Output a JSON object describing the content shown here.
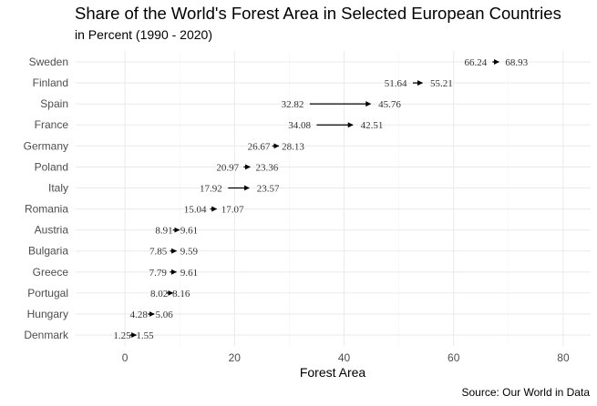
{
  "title": "Share of the World's Forest Area in Selected European Countries",
  "subtitle": "in Percent (1990 - 2020)",
  "source": "Source: Our World in Data",
  "chart_data": {
    "type": "arrow",
    "xlabel": "Forest Area",
    "ylabel": "",
    "xlim": [
      -9,
      85
    ],
    "xticks": [
      0,
      20,
      40,
      60,
      80
    ],
    "grid": true,
    "categories": [
      "Sweden",
      "Finland",
      "Spain",
      "France",
      "Germany",
      "Poland",
      "Italy",
      "Romania",
      "Austria",
      "Bulgaria",
      "Greece",
      "Portugal",
      "Hungary",
      "Denmark"
    ],
    "series": [
      {
        "name": "1990",
        "values": [
          66.24,
          51.64,
          32.82,
          34.08,
          26.67,
          20.97,
          17.92,
          15.04,
          8.91,
          7.85,
          7.79,
          8.02,
          4.28,
          1.25
        ]
      },
      {
        "name": "2020",
        "values": [
          68.93,
          55.21,
          45.76,
          42.51,
          28.13,
          23.36,
          23.57,
          17.07,
          9.61,
          9.59,
          9.61,
          8.16,
          5.06,
          1.55
        ]
      }
    ],
    "colors": {
      "arrow": "#000000",
      "grid": "#ebebeb",
      "text": "#333333"
    }
  }
}
